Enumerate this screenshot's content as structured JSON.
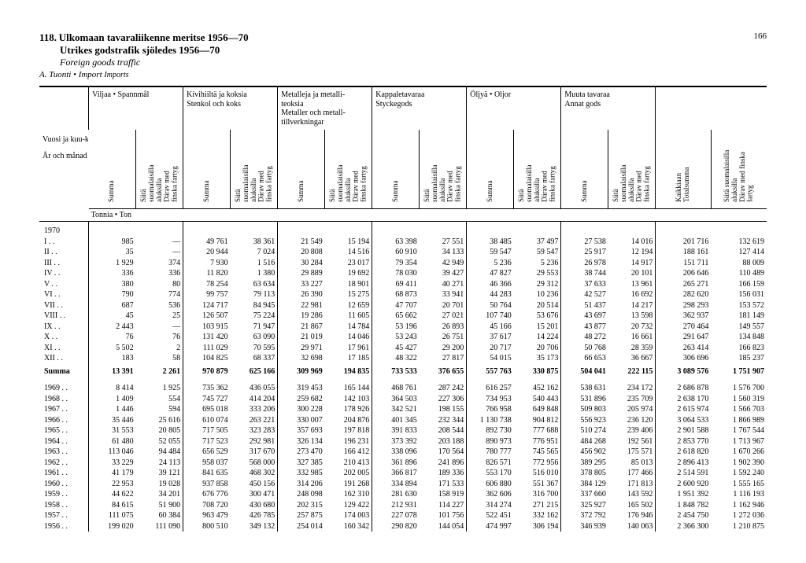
{
  "page_number": "166",
  "title_number": "118.",
  "title_fi": "Ulkomaan tavaraliikenne meritse 1956—70",
  "title_sv": "Utrikes godstrafik sjöledes 1956—70",
  "title_en": "Foreign goods traffic",
  "subtitle": "A. Tuonti • Import",
  "subtitle_em": "Imports",
  "row_header_top": "Vuosi ja kuu-kausi",
  "row_header_bottom": "År och månad",
  "unit_label": "Tonnia • Ton",
  "groups": [
    {
      "label": "Viljaa • Spannmål"
    },
    {
      "label": "Kivihiiltä ja koksia\nStenkol och koks"
    },
    {
      "label": "Metalleja ja metalli-\nteoksia\nMetaller och metall-\ntillverkningar"
    },
    {
      "label": "Kappaletavaraa\nStyckegods"
    },
    {
      "label": "Öljyä • Oljor"
    },
    {
      "label": "Muuta tavaraa\nAnnat gods"
    }
  ],
  "sub_summa": "Summa",
  "sub_siita": "Siitä\nsuomalaisilla\naluksilla\nDärav med\nfinska fartyg",
  "sub_kaikkiaan": "Kaikkiaan\nTotalsumma",
  "sub_siita_total": "Siitä suomalaisilla\naluksilla\nDärav med finska\nfartyg",
  "year_1970": "1970",
  "months": [
    "I  . .",
    "II  . .",
    "III  . .",
    "IV  . .",
    "V  . .",
    "VI  . .",
    "VII  . .",
    "VIII  . .",
    "IX  . .",
    "X  . .",
    "XI  . .",
    "XII  . ."
  ],
  "summa_label": "Summa",
  "data_1970": [
    [
      "985",
      "—",
      "49 761",
      "38 361",
      "21 549",
      "15 194",
      "63 398",
      "27 551",
      "38 485",
      "37 497",
      "27 538",
      "14 016",
      "201 716",
      "132 619"
    ],
    [
      "35",
      "—",
      "20 944",
      "7 024",
      "20 808",
      "14 516",
      "60 910",
      "34 133",
      "59 547",
      "59 547",
      "25 917",
      "12 194",
      "188 161",
      "127 414"
    ],
    [
      "1 929",
      "374",
      "7 930",
      "1 516",
      "30 284",
      "23 017",
      "79 354",
      "42 949",
      "5 236",
      "5 236",
      "26 978",
      "14 917",
      "151 711",
      "88 009"
    ],
    [
      "336",
      "336",
      "11 820",
      "1 380",
      "29 889",
      "19 692",
      "78 030",
      "39 427",
      "47 827",
      "29 553",
      "38 744",
      "20 101",
      "206 646",
      "110 489"
    ],
    [
      "380",
      "80",
      "78 254",
      "63 634",
      "33 227",
      "18 901",
      "69 411",
      "40 271",
      "46 366",
      "29 312",
      "37 633",
      "13 961",
      "265 271",
      "166 159"
    ],
    [
      "790",
      "774",
      "99 757",
      "79 113",
      "26 390",
      "15 275",
      "68 873",
      "33 941",
      "44 283",
      "10 236",
      "42 527",
      "16 692",
      "282 620",
      "156 031"
    ],
    [
      "687",
      "536",
      "124 717",
      "84 945",
      "22 981",
      "12 659",
      "47 707",
      "20 701",
      "50 764",
      "20 514",
      "51 437",
      "14 217",
      "298 293",
      "153 572"
    ],
    [
      "45",
      "25",
      "126 507",
      "75 224",
      "19 286",
      "11 605",
      "65 662",
      "27 021",
      "107 740",
      "53 676",
      "43 697",
      "13 598",
      "362 937",
      "181 149"
    ],
    [
      "2 443",
      "—",
      "103 915",
      "71 947",
      "21 867",
      "14 784",
      "53 196",
      "26 893",
      "45 166",
      "15 201",
      "43 877",
      "20 732",
      "270 464",
      "149 557"
    ],
    [
      "76",
      "76",
      "131 420",
      "63 090",
      "21 019",
      "14 046",
      "53 243",
      "26 751",
      "37 617",
      "14 224",
      "48 272",
      "16 661",
      "291 647",
      "134 848"
    ],
    [
      "5 502",
      "2",
      "111 029",
      "70 595",
      "29 971",
      "17 961",
      "45 427",
      "29 200",
      "20 717",
      "20 706",
      "50 768",
      "28 359",
      "263 414",
      "166 823"
    ],
    [
      "183",
      "58",
      "104 825",
      "68 337",
      "32 698",
      "17 185",
      "48 322",
      "27 817",
      "54 015",
      "35 173",
      "66 653",
      "36 667",
      "306 696",
      "185 237"
    ]
  ],
  "summa_1970": [
    "13 391",
    "2 261",
    "970 879",
    "625 166",
    "309 969",
    "194 835",
    "733 533",
    "376 655",
    "557 763",
    "330 875",
    "504 041",
    "222 115",
    "3 089 576",
    "1 751 907"
  ],
  "years": [
    "1969 . .",
    "1968 . .",
    "1967 . .",
    "1966 . .",
    "1965 . .",
    "1964 . .",
    "1963 . .",
    "1962 . .",
    "1961 . .",
    "1960 . .",
    "1959 . .",
    "1958 . .",
    "1957 . .",
    "1956 . ."
  ],
  "data_years": [
    [
      "8 414",
      "1 925",
      "735 362",
      "436 055",
      "319 453",
      "165 144",
      "468 761",
      "287 242",
      "616 257",
      "452 162",
      "538 631",
      "234 172",
      "2 686 878",
      "1 576 700"
    ],
    [
      "1 409",
      "554",
      "745 727",
      "414 204",
      "259 682",
      "142 103",
      "364 503",
      "227 306",
      "734 953",
      "540 443",
      "531 896",
      "235 709",
      "2 638 170",
      "1 560 319"
    ],
    [
      "1 446",
      "594",
      "695 018",
      "333 206",
      "300 228",
      "178 926",
      "342 521",
      "198 155",
      "766 958",
      "649 848",
      "509 803",
      "205 974",
      "2 615 974",
      "1 566 703"
    ],
    [
      "35 446",
      "25 616",
      "610 074",
      "263 221",
      "330 007",
      "204 876",
      "401 345",
      "232 344",
      "1 130 738",
      "904 812",
      "556 923",
      "236 120",
      "3 064 533",
      "1 866 989"
    ],
    [
      "31 553",
      "20 805",
      "717 505",
      "323 283",
      "357 693",
      "197 818",
      "391 833",
      "208 544",
      "892 730",
      "777 688",
      "510 274",
      "239 406",
      "2 901 588",
      "1 767 544"
    ],
    [
      "61 480",
      "52 055",
      "717 523",
      "292 981",
      "326 134",
      "196 231",
      "373 392",
      "203 188",
      "890 973",
      "776 951",
      "484 268",
      "192 561",
      "2 853 770",
      "1 713 967"
    ],
    [
      "113 046",
      "94 484",
      "656 529",
      "317 670",
      "273 470",
      "166 412",
      "338 096",
      "170 564",
      "780 777",
      "745 565",
      "456 902",
      "175 571",
      "2 618 820",
      "1 670 266"
    ],
    [
      "33 229",
      "24 113",
      "958 037",
      "568 000",
      "327 385",
      "210 413",
      "361 896",
      "241 896",
      "826 571",
      "772 956",
      "389 295",
      "85 013",
      "2 896 413",
      "1 902 390"
    ],
    [
      "41 179",
      "39 121",
      "841 635",
      "468 302",
      "332 985",
      "202 005",
      "366 817",
      "189 336",
      "553 170",
      "516 010",
      "378 805",
      "177 466",
      "2 514 591",
      "1 592 240"
    ],
    [
      "22 953",
      "19 028",
      "937 858",
      "450 156",
      "314 206",
      "191 268",
      "334 894",
      "171 533",
      "606 880",
      "551 367",
      "384 129",
      "171 813",
      "2 600 920",
      "1 555 165"
    ],
    [
      "44 622",
      "34 201",
      "676 776",
      "300 471",
      "248 098",
      "162 310",
      "281 630",
      "158 919",
      "362 606",
      "316 700",
      "337 660",
      "143 592",
      "1 951 392",
      "1 116 193"
    ],
    [
      "84 615",
      "51 900",
      "708 720",
      "430 680",
      "202 315",
      "129 422",
      "212 931",
      "114 227",
      "314 274",
      "271 215",
      "325 927",
      "165 502",
      "1 848 782",
      "1 162 946"
    ],
    [
      "111 075",
      "60 384",
      "963 479",
      "426 785",
      "257 875",
      "174 003",
      "227 078",
      "101 756",
      "522 451",
      "332 162",
      "372 792",
      "176 946",
      "2 454 750",
      "1 272 036"
    ],
    [
      "199 020",
      "111 090",
      "800 510",
      "349 132",
      "254 014",
      "160 342",
      "290 820",
      "144 054",
      "474 997",
      "306 194",
      "346 939",
      "140 063",
      "2 366 300",
      "1 210 875"
    ]
  ]
}
